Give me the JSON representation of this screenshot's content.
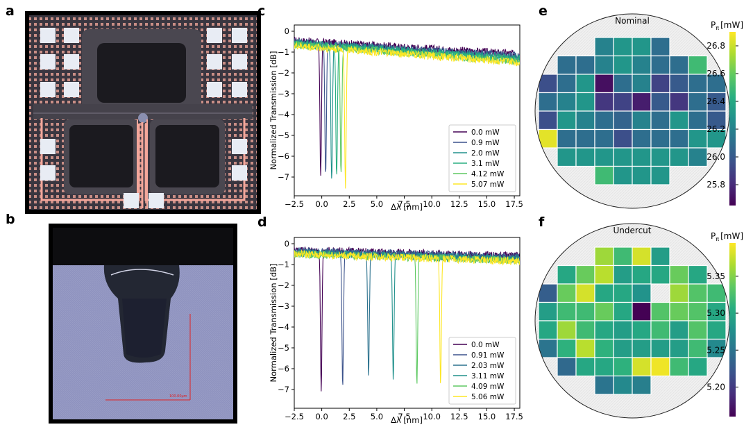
{
  "panel_labels": {
    "a": "a",
    "b": "b",
    "c": "c",
    "d": "d",
    "e": "e",
    "f": "f"
  },
  "micrograph_b": {
    "scale_label": "100.00µm"
  },
  "colors": {
    "viridis": [
      "#440154",
      "#472d7b",
      "#3b528b",
      "#2c728e",
      "#21918c",
      "#28ae80",
      "#5ec962",
      "#addc30",
      "#fde725"
    ],
    "chip_bg": "#3a3640",
    "chip_grid": "#c98e86",
    "trace": "#f4a79b",
    "pad": "#e8ecf4",
    "cross_section_bg": "#8f93bf"
  },
  "chart_data": [
    {
      "id": "c",
      "type": "line",
      "xlabel": "Δλ [nm]",
      "ylabel": "Normalized Transmission [dB]",
      "xlim": [
        -2.5,
        18
      ],
      "ylim": [
        -7.9,
        0.3
      ],
      "xticks": [
        "−2.5",
        "0.0",
        "2.5",
        "5.0",
        "7.5",
        "10.0",
        "12.5",
        "15.0",
        "17.5"
      ],
      "yticks": [
        "0",
        "−1",
        "−2",
        "−3",
        "−4",
        "−5",
        "−6",
        "−7"
      ],
      "legend_position": "lower-right",
      "series": [
        {
          "name": "0.0 mW",
          "dip_x": -0.1,
          "dip_y": -6.8,
          "baseline_start": -0.45,
          "baseline_end": -1.1,
          "color": "#440154"
        },
        {
          "name": "0.9 mW",
          "dip_x": 0.35,
          "dip_y": -6.9,
          "baseline_start": -0.5,
          "baseline_end": -1.2,
          "color": "#3b528b"
        },
        {
          "name": "2.0 mW",
          "dip_x": 0.9,
          "dip_y": -7.1,
          "baseline_start": -0.55,
          "baseline_end": -1.3,
          "color": "#21918c"
        },
        {
          "name": "3.1 mW",
          "dip_x": 1.35,
          "dip_y": -7.0,
          "baseline_start": -0.6,
          "baseline_end": -1.35,
          "color": "#28ae80"
        },
        {
          "name": "4.12 mW",
          "dip_x": 1.75,
          "dip_y": -6.8,
          "baseline_start": -0.65,
          "baseline_end": -1.45,
          "color": "#5ec962"
        },
        {
          "name": "5.07 mW",
          "dip_x": 2.15,
          "dip_y": -7.2,
          "baseline_start": -0.7,
          "baseline_end": -1.5,
          "color": "#fde725"
        }
      ]
    },
    {
      "id": "d",
      "type": "line",
      "xlabel": "Δλ [nm]",
      "ylabel": "Normalized Transmission [dB]",
      "xlim": [
        -2.5,
        18
      ],
      "ylim": [
        -7.9,
        0.3
      ],
      "xticks": [
        "−2.5",
        "0.0",
        "2.5",
        "5.0",
        "7.5",
        "10.0",
        "12.5",
        "15.0",
        "17.5"
      ],
      "yticks": [
        "0",
        "−1",
        "−2",
        "−3",
        "−4",
        "−5",
        "−6",
        "−7"
      ],
      "legend_position": "lower-right",
      "series": [
        {
          "name": "0.0 mW",
          "dip_x": -0.05,
          "dip_y": -7.0,
          "baseline_start": -0.3,
          "baseline_end": -0.6,
          "color": "#440154"
        },
        {
          "name": "0.91 mW",
          "dip_x": 1.9,
          "dip_y": -6.9,
          "baseline_start": -0.35,
          "baseline_end": -0.65,
          "color": "#3b528b"
        },
        {
          "name": "2.03 mW",
          "dip_x": 4.25,
          "dip_y": -6.4,
          "baseline_start": -0.4,
          "baseline_end": -0.7,
          "color": "#2c728e"
        },
        {
          "name": "3.11 mW",
          "dip_x": 6.5,
          "dip_y": -6.3,
          "baseline_start": -0.45,
          "baseline_end": -0.75,
          "color": "#21918c"
        },
        {
          "name": "4.09 mW",
          "dip_x": 8.65,
          "dip_y": -6.7,
          "baseline_start": -0.5,
          "baseline_end": -0.8,
          "color": "#5ec962"
        },
        {
          "name": "5.06 mW",
          "dip_x": 10.8,
          "dip_y": -6.5,
          "baseline_start": -0.5,
          "baseline_end": -0.85,
          "color": "#fde725"
        }
      ]
    },
    {
      "id": "e",
      "type": "heatmap",
      "title": "Nominal",
      "colorbar_label": "P",
      "colorbar_sub": "π",
      "colorbar_unit": "[mW]",
      "vmin": 25.65,
      "vmax": 26.9,
      "cbticks": [
        "26.8",
        "26.6",
        "26.4",
        "26.2",
        "26.0",
        "25.8"
      ],
      "cbtick_values": [
        26.8,
        26.6,
        26.4,
        26.2,
        26.0,
        25.8
      ],
      "rows": [
        {
          "start": 3,
          "values": [
            26.2,
            26.3,
            26.3,
            26.1
          ]
        },
        {
          "start": 1,
          "values": [
            26.1,
            26.1,
            26.2,
            26.3,
            26.2,
            26.1,
            26.1,
            26.5
          ]
        },
        {
          "start": 0,
          "values": [
            25.95,
            26.1,
            26.3,
            25.7,
            26.1,
            26.2,
            25.9,
            26.0,
            26.1,
            26.1
          ]
        },
        {
          "start": 0,
          "values": [
            26.1,
            26.2,
            26.3,
            25.85,
            25.9,
            25.75,
            26.0,
            25.85,
            26.1,
            26.0
          ]
        },
        {
          "start": 0,
          "values": [
            25.95,
            26.3,
            26.2,
            26.1,
            26.05,
            26.2,
            26.1,
            26.3,
            26.1,
            26.0
          ]
        },
        {
          "start": 0,
          "values": [
            26.85,
            26.1,
            26.1,
            26.1,
            25.95,
            26.1,
            26.1,
            26.1,
            26.3,
            26.3
          ]
        },
        {
          "start": 1,
          "values": [
            26.3,
            26.3,
            26.3,
            26.3,
            26.3,
            26.3,
            26.3,
            26.2
          ]
        },
        {
          "start": 3,
          "values": [
            26.5,
            26.3,
            26.3,
            26.3
          ]
        }
      ]
    },
    {
      "id": "f",
      "type": "heatmap",
      "title": "Undercut",
      "colorbar_label": "P",
      "colorbar_sub": "π",
      "colorbar_unit": "[mW]",
      "vmin": 5.16,
      "vmax": 5.395,
      "cbticks": [
        "5.35",
        "5.30",
        "5.25",
        "5.20"
      ],
      "cbtick_values": [
        5.35,
        5.3,
        5.25,
        5.2
      ],
      "rows": [
        {
          "start": 3,
          "values": [
            5.36,
            5.32,
            5.38,
            5.29
          ]
        },
        {
          "start": 1,
          "values": [
            5.3,
            5.34,
            5.37,
            5.29,
            5.3,
            5.3,
            5.34,
            5.3
          ]
        },
        {
          "start": 0,
          "values": [
            5.23,
            5.34,
            5.38,
            5.3,
            5.3,
            5.28,
            null,
            5.36,
            5.33,
            5.32
          ]
        },
        {
          "start": 0,
          "values": [
            5.29,
            5.32,
            5.32,
            5.34,
            5.3,
            5.16,
            5.33,
            5.34,
            5.33,
            5.3
          ]
        },
        {
          "start": 0,
          "values": [
            5.3,
            5.36,
            5.32,
            5.3,
            5.29,
            5.3,
            5.32,
            5.29,
            5.33,
            5.3
          ]
        },
        {
          "start": 0,
          "values": [
            5.25,
            5.31,
            5.37,
            5.31,
            5.29,
            5.29,
            5.29,
            5.29,
            5.32,
            5.27
          ]
        },
        {
          "start": 1,
          "values": [
            5.24,
            5.3,
            5.3,
            5.31,
            5.38,
            5.39,
            5.32,
            5.3
          ]
        },
        {
          "start": 3,
          "values": [
            5.25,
            5.27,
            5.26
          ]
        }
      ]
    }
  ]
}
